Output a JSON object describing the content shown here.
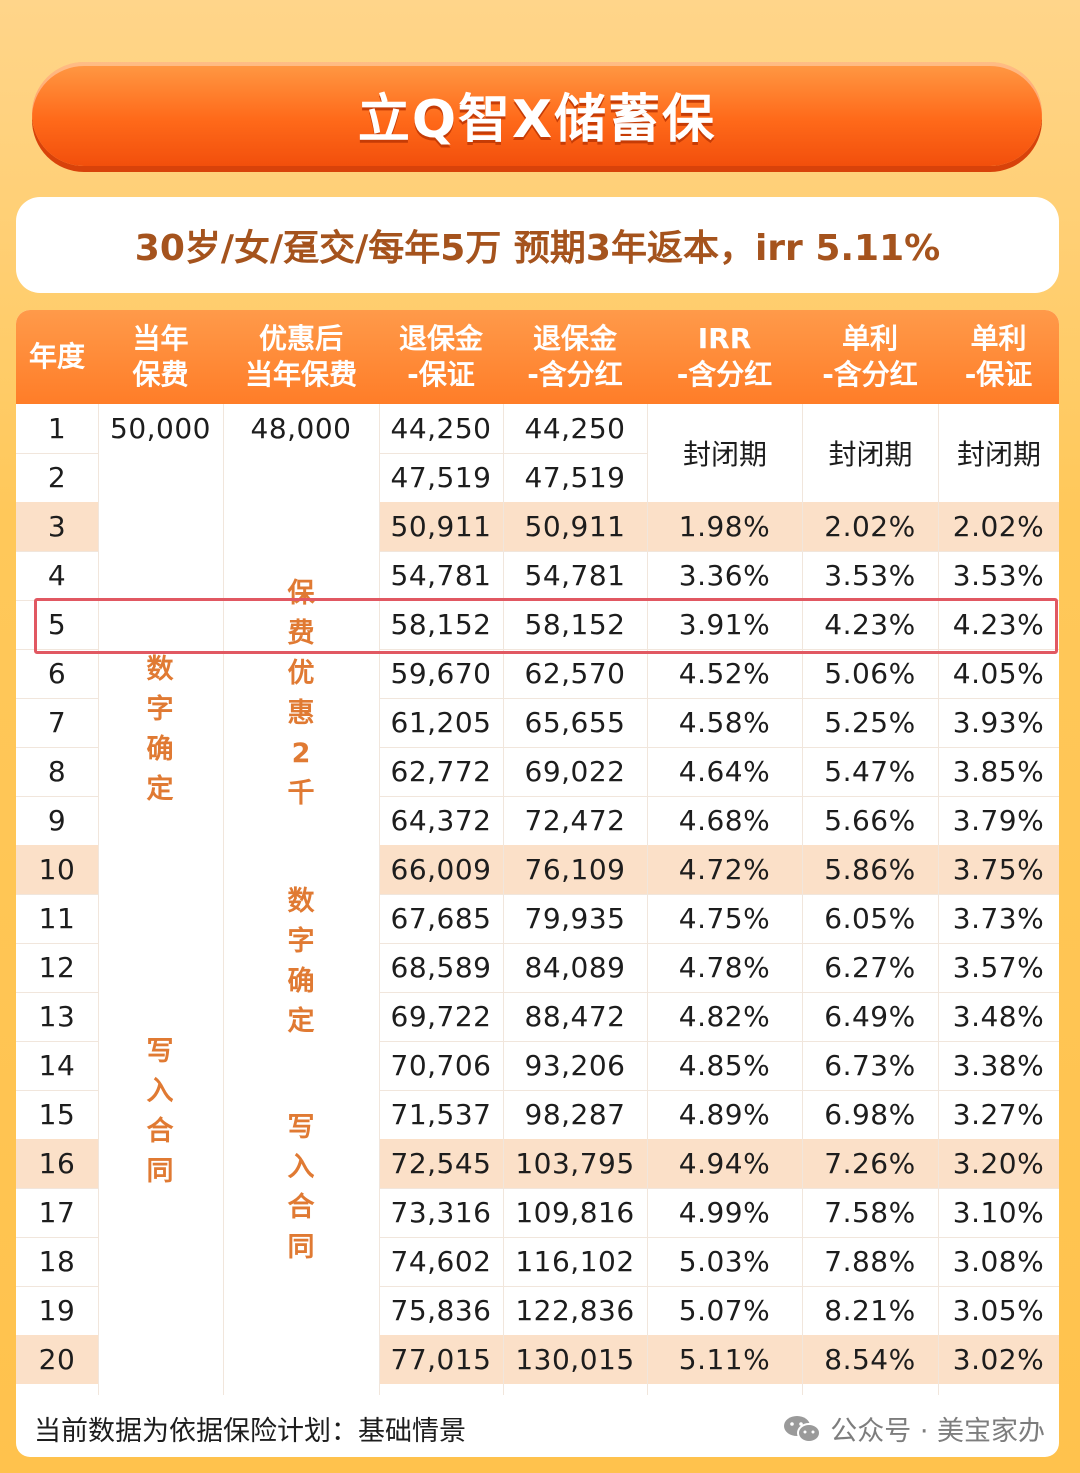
{
  "title": "立Q智X储蓄保",
  "subtitle": "30岁/女/趸交/每年5万  预期3年返本，irr 5.11%",
  "table": {
    "headers": [
      "年度",
      "当年\n保费",
      "优惠后\n当年保费",
      "退保金\n-保证",
      "退保金\n-含分红",
      "IRR\n-含分红",
      "单利\n-含分红",
      "单利\n-保证"
    ],
    "premium_y1": "50,000",
    "discounted_premium_y1": "48,000",
    "closed_label": "封闭期",
    "col2_note_a": "数字确定",
    "col2_note_b": "写入合同",
    "col3_note_a": "保费优惠2千",
    "col3_note_b": "数字确定",
    "col3_note_c": "写入合同",
    "rows": [
      {
        "year": "1",
        "sv_g": "44,250",
        "sv_d": "44,250",
        "irr": "",
        "s_d": "",
        "s_g": ""
      },
      {
        "year": "2",
        "sv_g": "47,519",
        "sv_d": "47,519",
        "irr": "",
        "s_d": "",
        "s_g": ""
      },
      {
        "year": "3",
        "sv_g": "50,911",
        "sv_d": "50,911",
        "irr": "1.98%",
        "s_d": "2.02%",
        "s_g": "2.02%"
      },
      {
        "year": "4",
        "sv_g": "54,781",
        "sv_d": "54,781",
        "irr": "3.36%",
        "s_d": "3.53%",
        "s_g": "3.53%"
      },
      {
        "year": "5",
        "sv_g": "58,152",
        "sv_d": "58,152",
        "irr": "3.91%",
        "s_d": "4.23%",
        "s_g": "4.23%"
      },
      {
        "year": "6",
        "sv_g": "59,670",
        "sv_d": "62,570",
        "irr": "4.52%",
        "s_d": "5.06%",
        "s_g": "4.05%"
      },
      {
        "year": "7",
        "sv_g": "61,205",
        "sv_d": "65,655",
        "irr": "4.58%",
        "s_d": "5.25%",
        "s_g": "3.93%"
      },
      {
        "year": "8",
        "sv_g": "62,772",
        "sv_d": "69,022",
        "irr": "4.64%",
        "s_d": "5.47%",
        "s_g": "3.85%"
      },
      {
        "year": "9",
        "sv_g": "64,372",
        "sv_d": "72,472",
        "irr": "4.68%",
        "s_d": "5.66%",
        "s_g": "3.79%"
      },
      {
        "year": "10",
        "sv_g": "66,009",
        "sv_d": "76,109",
        "irr": "4.72%",
        "s_d": "5.86%",
        "s_g": "3.75%"
      },
      {
        "year": "11",
        "sv_g": "67,685",
        "sv_d": "79,935",
        "irr": "4.75%",
        "s_d": "6.05%",
        "s_g": "3.73%"
      },
      {
        "year": "12",
        "sv_g": "68,589",
        "sv_d": "84,089",
        "irr": "4.78%",
        "s_d": "6.27%",
        "s_g": "3.57%"
      },
      {
        "year": "13",
        "sv_g": "69,722",
        "sv_d": "88,472",
        "irr": "4.82%",
        "s_d": "6.49%",
        "s_g": "3.48%"
      },
      {
        "year": "14",
        "sv_g": "70,706",
        "sv_d": "93,206",
        "irr": "4.85%",
        "s_d": "6.73%",
        "s_g": "3.38%"
      },
      {
        "year": "15",
        "sv_g": "71,537",
        "sv_d": "98,287",
        "irr": "4.89%",
        "s_d": "6.98%",
        "s_g": "3.27%"
      },
      {
        "year": "16",
        "sv_g": "72,545",
        "sv_d": "103,795",
        "irr": "4.94%",
        "s_d": "7.26%",
        "s_g": "3.20%"
      },
      {
        "year": "17",
        "sv_g": "73,316",
        "sv_d": "109,816",
        "irr": "4.99%",
        "s_d": "7.58%",
        "s_g": "3.10%"
      },
      {
        "year": "18",
        "sv_g": "74,602",
        "sv_d": "116,102",
        "irr": "5.03%",
        "s_d": "7.88%",
        "s_g": "3.08%"
      },
      {
        "year": "19",
        "sv_g": "75,836",
        "sv_d": "122,836",
        "irr": "5.07%",
        "s_d": "8.21%",
        "s_g": "3.05%"
      },
      {
        "year": "20",
        "sv_g": "77,015",
        "sv_d": "130,015",
        "irr": "5.11%",
        "s_d": "8.54%",
        "s_g": "3.02%"
      }
    ],
    "highlight_rows": [
      "3",
      "10",
      "16",
      "20"
    ],
    "boxed_row": "5"
  },
  "footer_note": "当前数据为依据保险计划：基础情景",
  "watermark": "公众号 · 美宝家办",
  "colors": {
    "accent": "#ff7d28",
    "row_highlight": "#fbe0c8",
    "note_text": "#e07a33",
    "box": "#e15862"
  }
}
